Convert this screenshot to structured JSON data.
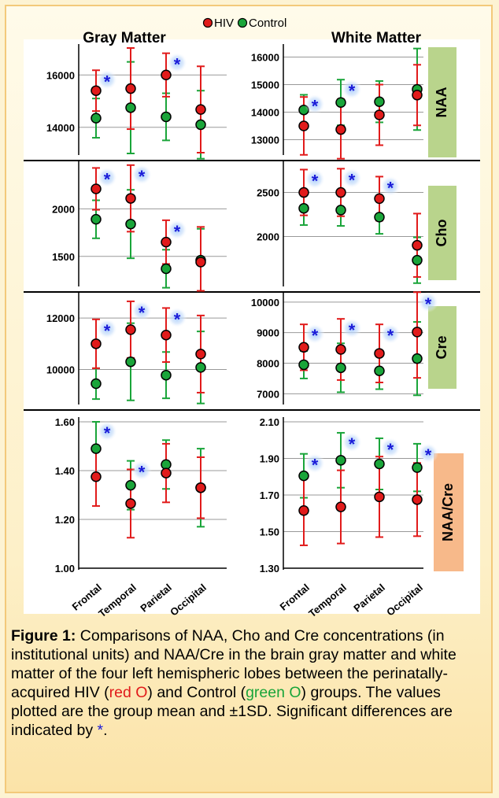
{
  "legend": {
    "hiv_label": "HIV",
    "control_label": "Control"
  },
  "columns": {
    "gray": "Gray Matter",
    "white": "White Matter"
  },
  "categories": [
    "Frontal",
    "Temporal",
    "Parietal",
    "Occipital"
  ],
  "colors": {
    "hiv": "#e11b1b",
    "control": "#1aa53a",
    "star": "#1b1bd8",
    "tag_green": "#b9d48c",
    "tag_orange": "#f7b98a"
  },
  "chart_data": [
    {
      "type": "scatter",
      "row": "NAA",
      "panel": "Gray Matter",
      "ylim": [
        13000,
        17000
      ],
      "yticks": [
        14000,
        16000
      ],
      "series": [
        {
          "name": "HIV",
          "mean": [
            15400,
            15480,
            16000,
            14680
          ],
          "sd": [
            780,
            1550,
            830,
            1650
          ]
        },
        {
          "name": "Control",
          "mean": [
            14350,
            14750,
            14400,
            14100
          ],
          "sd": [
            750,
            1750,
            900,
            1300
          ]
        }
      ],
      "significant": [
        true,
        false,
        true,
        false
      ]
    },
    {
      "type": "scatter",
      "row": "NAA",
      "panel": "White Matter",
      "ylim": [
        12500,
        16300
      ],
      "yticks": [
        13000,
        14000,
        15000,
        16000
      ],
      "series": [
        {
          "name": "HIV",
          "mean": [
            13500,
            13370,
            13900,
            14620
          ],
          "sd": [
            1050,
            1100,
            1100,
            1100
          ]
        },
        {
          "name": "Control",
          "mean": [
            14080,
            14350,
            14380,
            14830
          ],
          "sd": [
            550,
            830,
            750,
            1480
          ]
        }
      ],
      "significant": [
        true,
        true,
        false,
        false
      ]
    },
    {
      "type": "scatter",
      "row": "Cho",
      "panel": "Gray Matter",
      "ylim": [
        1200,
        2450
      ],
      "yticks": [
        1500,
        2000
      ],
      "series": [
        {
          "name": "HIV",
          "mean": [
            2210,
            2110,
            1650,
            1440
          ],
          "sd": [
            220,
            350,
            230,
            370
          ]
        },
        {
          "name": "Control",
          "mean": [
            1890,
            1840,
            1370,
            1460
          ],
          "sd": [
            200,
            360,
            200,
            330
          ]
        }
      ],
      "significant": [
        true,
        true,
        true,
        false
      ]
    },
    {
      "type": "scatter",
      "row": "Cho",
      "panel": "White Matter",
      "ylim": [
        1450,
        2800
      ],
      "yticks": [
        2000,
        2500
      ],
      "series": [
        {
          "name": "HIV",
          "mean": [
            2500,
            2500,
            2430,
            1900
          ],
          "sd": [
            260,
            270,
            250,
            360
          ]
        },
        {
          "name": "Control",
          "mean": [
            2320,
            2300,
            2220,
            1730
          ],
          "sd": [
            190,
            180,
            190,
            260
          ]
        }
      ],
      "significant": [
        true,
        true,
        true,
        false
      ]
    },
    {
      "type": "scatter",
      "row": "Cre",
      "panel": "Gray Matter",
      "ylim": [
        8700,
        12800
      ],
      "yticks": [
        10000,
        12000
      ],
      "series": [
        {
          "name": "HIV",
          "mean": [
            11000,
            11550,
            11340,
            10600
          ],
          "sd": [
            950,
            1100,
            1050,
            1500
          ]
        },
        {
          "name": "Control",
          "mean": [
            9450,
            10300,
            9780,
            10080
          ],
          "sd": [
            600,
            1500,
            900,
            1400
          ]
        }
      ],
      "significant": [
        true,
        true,
        true,
        false
      ]
    },
    {
      "type": "scatter",
      "row": "Cre",
      "panel": "White Matter",
      "ylim": [
        6700,
        10150
      ],
      "yticks": [
        7000,
        8000,
        9000,
        10000
      ],
      "series": [
        {
          "name": "HIV",
          "mean": [
            8520,
            8450,
            8320,
            9020
          ],
          "sd": [
            750,
            1000,
            950,
            1500
          ]
        },
        {
          "name": "Control",
          "mean": [
            7950,
            7850,
            7750,
            8150
          ],
          "sd": [
            450,
            800,
            600,
            1200
          ]
        }
      ],
      "significant": [
        true,
        true,
        true,
        true
      ]
    },
    {
      "type": "scatter",
      "row": "NAA/Cre",
      "panel": "Gray Matter",
      "ylim": [
        1.0,
        1.6
      ],
      "yticks": [
        "1.00",
        "1.20",
        "1.40",
        "1.60"
      ],
      "series": [
        {
          "name": "HIV",
          "mean": [
            1.375,
            1.265,
            1.39,
            1.33
          ],
          "sd": [
            0.12,
            0.14,
            0.12,
            0.125
          ]
        },
        {
          "name": "Control",
          "mean": [
            1.49,
            1.34,
            1.425,
            1.33
          ],
          "sd": [
            0.11,
            0.1,
            0.1,
            0.16
          ]
        }
      ],
      "significant": [
        true,
        true,
        false,
        false
      ]
    },
    {
      "type": "scatter",
      "row": "NAA/Cre",
      "panel": "White Matter",
      "ylim": [
        1.3,
        2.1
      ],
      "yticks": [
        "1.30",
        "1.50",
        "1.70",
        "1.90",
        "2.10"
      ],
      "series": [
        {
          "name": "HIV",
          "mean": [
            1.615,
            1.635,
            1.69,
            1.675
          ],
          "sd": [
            0.19,
            0.2,
            0.22,
            0.2
          ]
        },
        {
          "name": "Control",
          "mean": [
            1.805,
            1.89,
            1.87,
            1.85
          ],
          "sd": [
            0.12,
            0.15,
            0.14,
            0.13
          ]
        }
      ],
      "significant": [
        true,
        true,
        true,
        true
      ]
    }
  ],
  "caption": {
    "label": "Figure 1:",
    "text1": " Comparisons of NAA, Cho and Cre concentrations (in institutional units) and NAA/Cre in the brain gray matter and white matter of the four left hemispheric lobes between the perinatally-acquired HIV (",
    "hiv_marker": "red O",
    "text2": ") and Control (",
    "control_marker": "green O",
    "text3": ") groups. The values plotted are the group mean and ±1SD. Significant differences are indicated by ",
    "star": "*",
    "text4": "."
  }
}
